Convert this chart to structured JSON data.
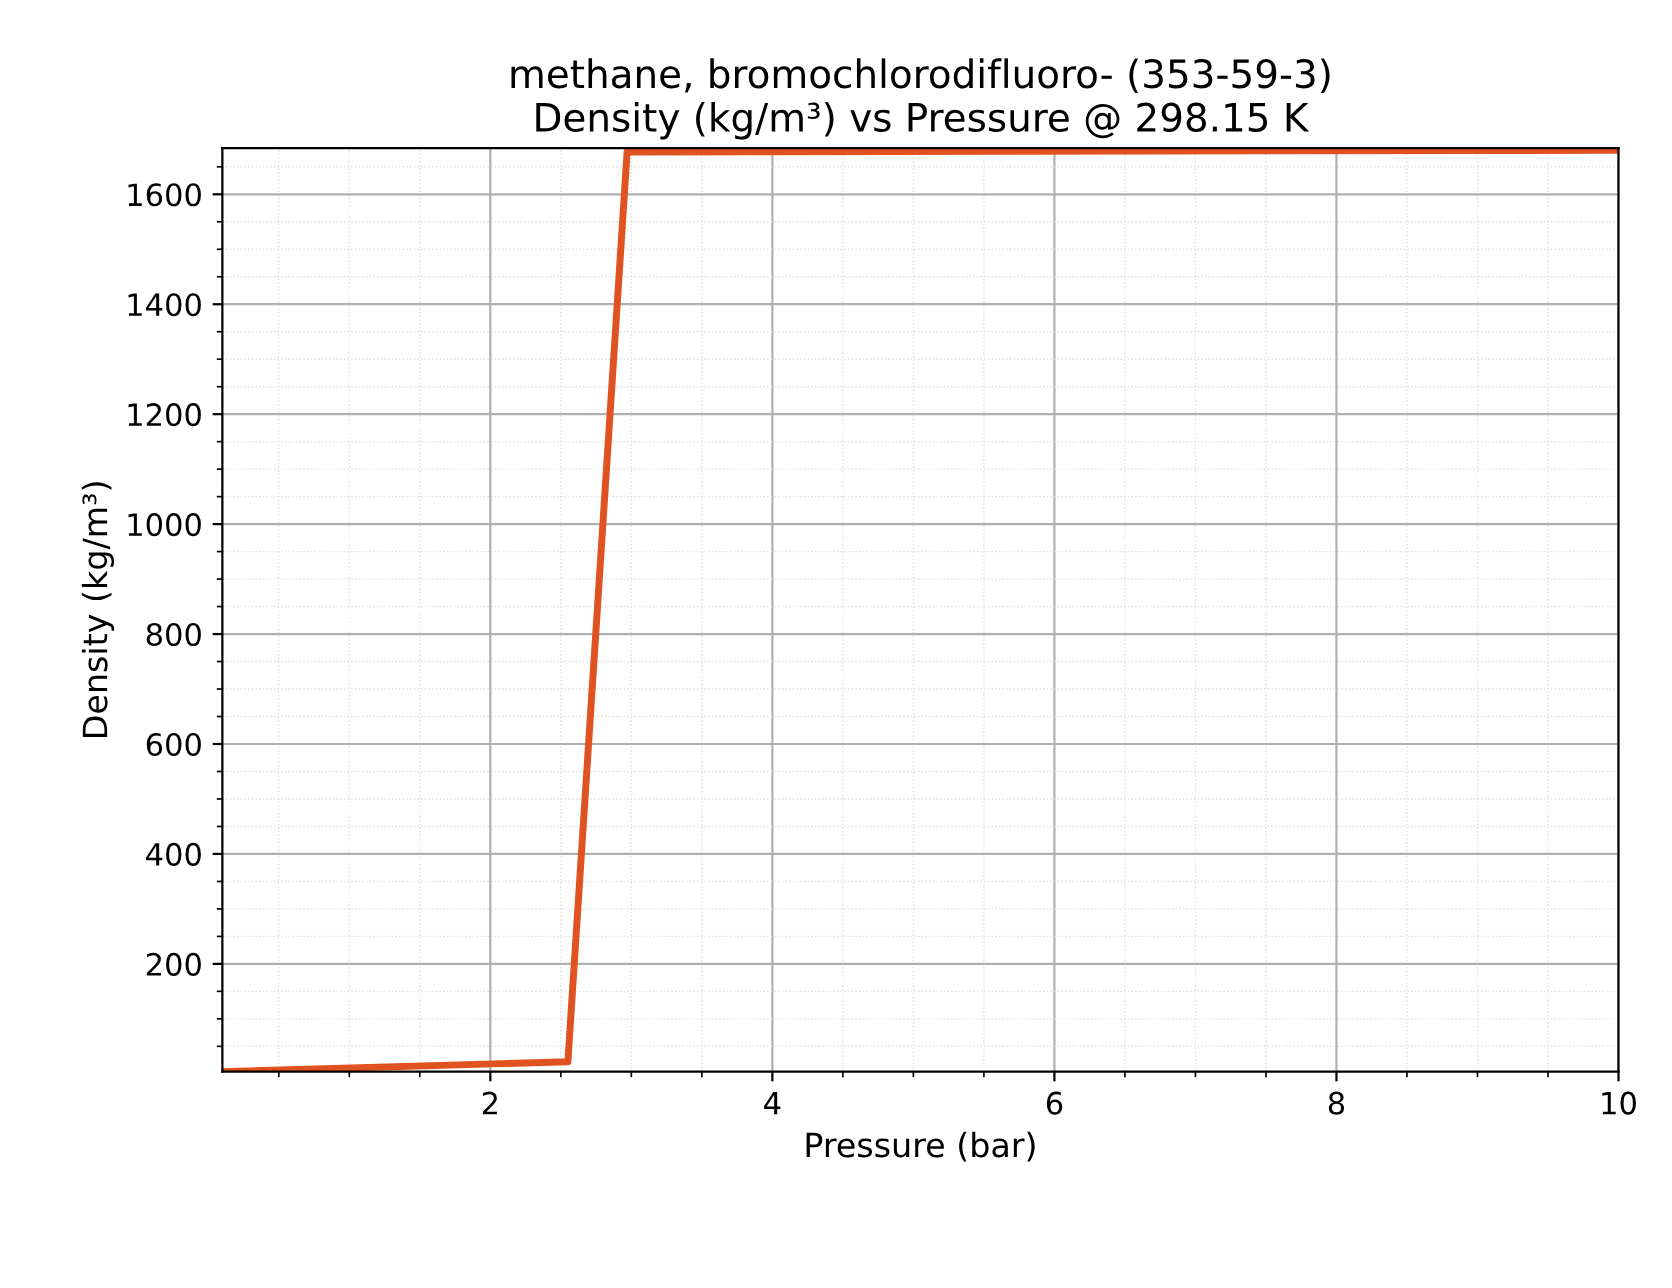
{
  "chart_data": {
    "type": "line",
    "title": "methane, bromochlorodifluoro- (353-59-3)\nDensity (kg/m³) vs Pressure @ 298.15 K",
    "xlabel": "Pressure (bar)",
    "ylabel": "Density (kg/m³)",
    "x": [
      0.1,
      2.55,
      2.97,
      10
    ],
    "series": [
      {
        "color": "#e0521f",
        "values": [
          4,
          22,
          1677,
          1680
        ]
      }
    ],
    "xlim": [
      0.1,
      10
    ],
    "ylim": [
      4,
      1684
    ],
    "xticks": [
      2,
      4,
      6,
      8,
      10
    ],
    "yticks": [
      200,
      400,
      600,
      800,
      1000,
      1200,
      1400,
      1600
    ],
    "grid": true,
    "marker": "none",
    "line_style": "solid"
  }
}
